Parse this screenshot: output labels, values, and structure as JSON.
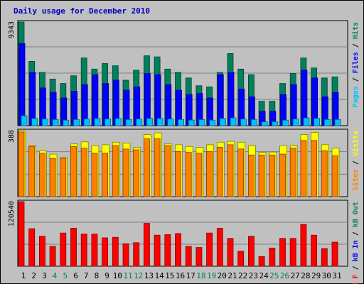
{
  "chart_data": {
    "type": "bar",
    "title": "Daily usage for December 2010",
    "categories": [
      "1",
      "2",
      "3",
      "4",
      "5",
      "6",
      "7",
      "8",
      "9",
      "10",
      "11",
      "12",
      "13",
      "14",
      "15",
      "16",
      "17",
      "18",
      "19",
      "20",
      "21",
      "22",
      "23",
      "24",
      "25",
      "26",
      "27",
      "28",
      "29",
      "30",
      "31"
    ],
    "weekend_days": [
      "4",
      "5",
      "11",
      "12",
      "18",
      "19",
      "25",
      "26"
    ],
    "grid": true,
    "panels": [
      {
        "id": "hits_files_pages",
        "ylim": [
          0,
          9343
        ],
        "max_label": "9343",
        "right_labels": [
          "Pages",
          "Files",
          "Hits"
        ],
        "series": [
          {
            "name": "Hits",
            "color": "#00805c",
            "values": [
              9343,
              5800,
              4800,
              4200,
              3800,
              4500,
              6100,
              5100,
              5600,
              5400,
              4100,
              5000,
              6300,
              6200,
              5100,
              4800,
              4300,
              3600,
              3500,
              4800,
              6500,
              5100,
              4600,
              2200,
              2200,
              3800,
              4700,
              6100,
              5200,
              4300,
              4400
            ]
          },
          {
            "name": "Files",
            "color": "#0000ff",
            "values": [
              7400,
              4800,
              3400,
              3000,
              2500,
              3100,
              3700,
              4600,
              3800,
              4100,
              3200,
              3500,
              4700,
              4600,
              3700,
              3200,
              2800,
              2900,
              2500,
              4600,
              4800,
              3300,
              2600,
              1300,
              1300,
              2800,
              3700,
              5000,
              4300,
              2600,
              3000
            ]
          },
          {
            "name": "Pages",
            "color": "#00c0ff",
            "values": [
              900,
              650,
              600,
              550,
              500,
              550,
              600,
              650,
              600,
              650,
              550,
              600,
              650,
              650,
              600,
              550,
              500,
              550,
              500,
              650,
              700,
              600,
              550,
              350,
              350,
              500,
              600,
              700,
              650,
              550,
              550
            ]
          }
        ]
      },
      {
        "id": "visits_sites",
        "ylim": [
          0,
          388
        ],
        "max_label": "388",
        "right_labels": [
          "Sites",
          "Visits"
        ],
        "series": [
          {
            "name": "Visits",
            "color": "#ffff00",
            "values": [
              388,
              300,
              270,
              250,
              230,
              310,
              322,
              300,
              305,
              320,
              315,
              290,
              365,
              375,
              310,
              305,
              295,
              290,
              305,
              320,
              325,
              320,
              300,
              260,
              262,
              300,
              300,
              365,
              378,
              305,
              285
            ]
          },
          {
            "name": "Sites",
            "color": "#ff8000",
            "values": [
              380,
              295,
              255,
              225,
              225,
              295,
              285,
              255,
              255,
              300,
              280,
              275,
              340,
              340,
              300,
              265,
              260,
              255,
              265,
              290,
              305,
              280,
              245,
              245,
              245,
              250,
              285,
              330,
              330,
              270,
              240
            ]
          }
        ]
      },
      {
        "id": "kbytes",
        "ylim": [
          0,
          120540
        ],
        "max_label": "120540",
        "right_labels": [
          "kB F",
          "kB In",
          "kB Out"
        ],
        "series": [
          {
            "name": "kB F",
            "color": "#ff0000",
            "values": [
              120540,
              70000,
              56000,
              37000,
              62000,
              71000,
              60000,
              60000,
              53000,
              54000,
              42000,
              44000,
              80000,
              58000,
              59000,
              61000,
              37000,
              35000,
              62000,
              71000,
              52000,
              28000,
              56000,
              18000,
              34000,
              52000,
              52000,
              78000,
              58000,
              33000,
              45000
            ]
          }
        ]
      }
    ]
  }
}
